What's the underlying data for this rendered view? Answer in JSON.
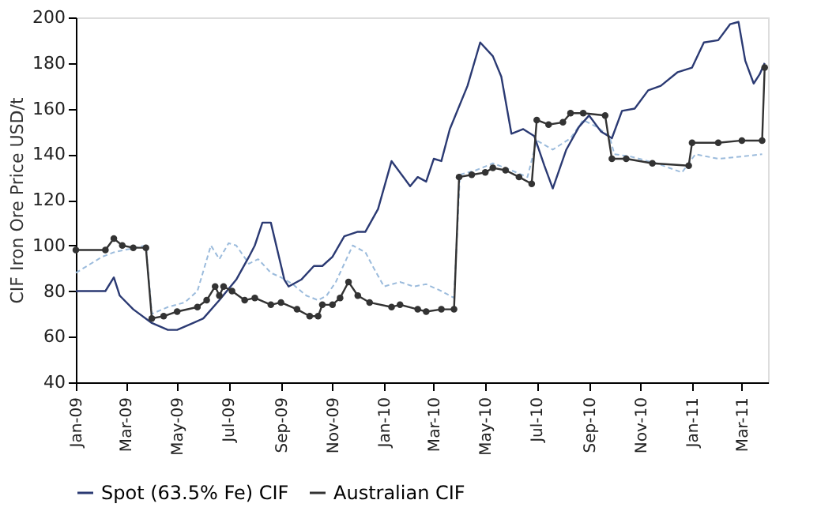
{
  "chart_data": {
    "type": "line",
    "ylabel": "CIF Iron Ore Price USD/t",
    "xlim": [
      "2009-01-01",
      "2011-04-01"
    ],
    "ylim": [
      40,
      200
    ],
    "yticks": [
      40,
      60,
      80,
      100,
      120,
      140,
      160,
      180,
      200
    ],
    "xticks": [
      {
        "value": "2009-01-01",
        "label": "Jan-09"
      },
      {
        "value": "2009-03-01",
        "label": "Mar-09"
      },
      {
        "value": "2009-05-01",
        "label": "May-09"
      },
      {
        "value": "2009-07-01",
        "label": "Jul-09"
      },
      {
        "value": "2009-09-01",
        "label": "Sep-09"
      },
      {
        "value": "2009-11-01",
        "label": "Nov-09"
      },
      {
        "value": "2010-01-01",
        "label": "Jan-10"
      },
      {
        "value": "2010-03-01",
        "label": "Mar-10"
      },
      {
        "value": "2010-05-01",
        "label": "May-10"
      },
      {
        "value": "2010-07-01",
        "label": "Jul-10"
      },
      {
        "value": "2010-09-01",
        "label": "Sep-10"
      },
      {
        "value": "2010-11-01",
        "label": "Nov-10"
      },
      {
        "value": "2011-01-01",
        "label": "Jan-11"
      },
      {
        "value": "2011-03-01",
        "label": "Mar-11"
      }
    ],
    "grid": false,
    "legend": "bottom",
    "series": [
      {
        "color": "#9bbbdc",
        "line_style": "dashed",
        "marker": "none",
        "x": [
          "2009-01-01",
          "2009-02-01",
          "2009-02-15",
          "2009-03-25",
          "2009-04-01",
          "2009-04-20",
          "2009-05-10",
          "2009-05-25",
          "2009-06-10",
          "2009-06-20",
          "2009-07-01",
          "2009-07-10",
          "2009-07-25",
          "2009-08-05",
          "2009-08-20",
          "2009-09-01",
          "2009-09-15",
          "2009-10-01",
          "2009-10-15",
          "2009-10-25",
          "2009-11-05",
          "2009-11-15",
          "2009-11-25",
          "2009-12-10",
          "2009-12-20",
          "2010-01-01",
          "2010-01-20",
          "2010-02-05",
          "2010-02-20",
          "2010-03-10",
          "2010-03-25",
          "2010-04-01",
          "2010-04-20",
          "2010-05-10",
          "2010-05-25",
          "2010-06-20",
          "2010-07-01",
          "2010-07-20",
          "2010-08-10",
          "2010-08-25",
          "2010-09-10",
          "2010-09-25",
          "2010-10-01",
          "2010-10-20",
          "2010-11-20",
          "2010-12-20",
          "2011-01-05",
          "2011-02-01",
          "2011-03-01",
          "2011-03-25"
        ],
        "values": [
          88,
          95,
          97,
          100,
          70,
          73,
          75,
          80,
          100,
          94,
          101,
          100,
          92,
          94,
          88,
          86,
          83,
          78,
          76,
          78,
          84,
          92,
          100,
          97,
          90,
          82,
          84,
          82,
          83,
          80,
          77,
          131,
          133,
          136,
          134,
          130,
          146,
          142,
          147,
          155,
          152,
          148,
          140,
          139,
          136,
          132,
          140,
          138,
          139,
          140
        ]
      },
      {
        "name": "Spot (63.5% Fe) CIF",
        "color": "#2b3a73",
        "line_style": "solid",
        "marker": "none",
        "x": [
          "2009-01-01",
          "2009-02-05",
          "2009-02-15",
          "2009-02-22",
          "2009-03-10",
          "2009-04-01",
          "2009-04-20",
          "2009-05-01",
          "2009-05-20",
          "2009-06-01",
          "2009-06-20",
          "2009-07-10",
          "2009-07-25",
          "2009-08-01",
          "2009-08-10",
          "2009-08-20",
          "2009-09-05",
          "2009-09-10",
          "2009-09-25",
          "2009-10-10",
          "2009-10-20",
          "2009-11-01",
          "2009-11-15",
          "2009-12-01",
          "2009-12-10",
          "2009-12-25",
          "2010-01-10",
          "2010-02-01",
          "2010-02-10",
          "2010-02-20",
          "2010-03-01",
          "2010-03-10",
          "2010-03-20",
          "2010-04-10",
          "2010-04-25",
          "2010-05-10",
          "2010-05-20",
          "2010-06-01",
          "2010-06-15",
          "2010-06-28",
          "2010-07-10",
          "2010-07-20",
          "2010-08-05",
          "2010-08-20",
          "2010-09-01",
          "2010-09-15",
          "2010-09-28",
          "2010-10-10",
          "2010-10-25",
          "2010-11-10",
          "2010-11-25",
          "2010-12-15",
          "2011-01-01",
          "2011-01-15",
          "2011-02-01",
          "2011-02-15",
          "2011-02-25",
          "2011-03-05",
          "2011-03-15",
          "2011-03-22",
          "2011-03-28"
        ],
        "values": [
          80,
          80,
          86,
          78,
          72,
          66,
          63,
          63,
          66,
          68,
          76,
          85,
          95,
          100,
          110,
          110,
          85,
          82,
          85,
          91,
          91,
          95,
          104,
          106,
          106,
          116,
          137,
          126,
          130,
          128,
          138,
          137,
          151,
          170,
          189,
          183,
          174,
          149,
          151,
          148,
          135,
          125,
          142,
          152,
          157,
          150,
          147,
          159,
          160,
          168,
          170,
          176,
          178,
          189,
          190,
          197,
          198,
          181,
          171,
          175,
          180
        ]
      },
      {
        "name": "Australian CIF",
        "color": "#333333",
        "line_style": "solid",
        "marker": "circle",
        "x": [
          "2009-01-01",
          "2009-02-05",
          "2009-02-15",
          "2009-02-25",
          "2009-03-10",
          "2009-03-25",
          "2009-04-01",
          "2009-04-15",
          "2009-05-01",
          "2009-05-25",
          "2009-06-05",
          "2009-06-15",
          "2009-06-20",
          "2009-06-25",
          "2009-07-05",
          "2009-07-20",
          "2009-08-01",
          "2009-08-20",
          "2009-09-01",
          "2009-09-20",
          "2009-10-05",
          "2009-10-15",
          "2009-10-20",
          "2009-11-01",
          "2009-11-10",
          "2009-11-20",
          "2009-12-01",
          "2009-12-15",
          "2010-01-10",
          "2010-01-20",
          "2010-02-10",
          "2010-02-20",
          "2010-03-10",
          "2010-03-25",
          "2010-03-31",
          "2010-04-15",
          "2010-05-01",
          "2010-05-10",
          "2010-05-25",
          "2010-06-10",
          "2010-06-25",
          "2010-07-01",
          "2010-07-15",
          "2010-08-01",
          "2010-08-10",
          "2010-08-25",
          "2010-09-20",
          "2010-09-28",
          "2010-10-15",
          "2010-11-15",
          "2010-12-28",
          "2011-01-01",
          "2011-02-01",
          "2011-03-01",
          "2011-03-25",
          "2011-03-28"
        ],
        "values": [
          98,
          98,
          103,
          100,
          99,
          99,
          68,
          69,
          71,
          73,
          76,
          82,
          78,
          82,
          80,
          76,
          77,
          74,
          75,
          72,
          69,
          69,
          74,
          74,
          77,
          84,
          78,
          75,
          73,
          74,
          72,
          71,
          72,
          72,
          130,
          131,
          132,
          134,
          133,
          130,
          127,
          155,
          153,
          154,
          158,
          158,
          157,
          138,
          138,
          136,
          135,
          145,
          145,
          146,
          146,
          178
        ]
      }
    ]
  }
}
